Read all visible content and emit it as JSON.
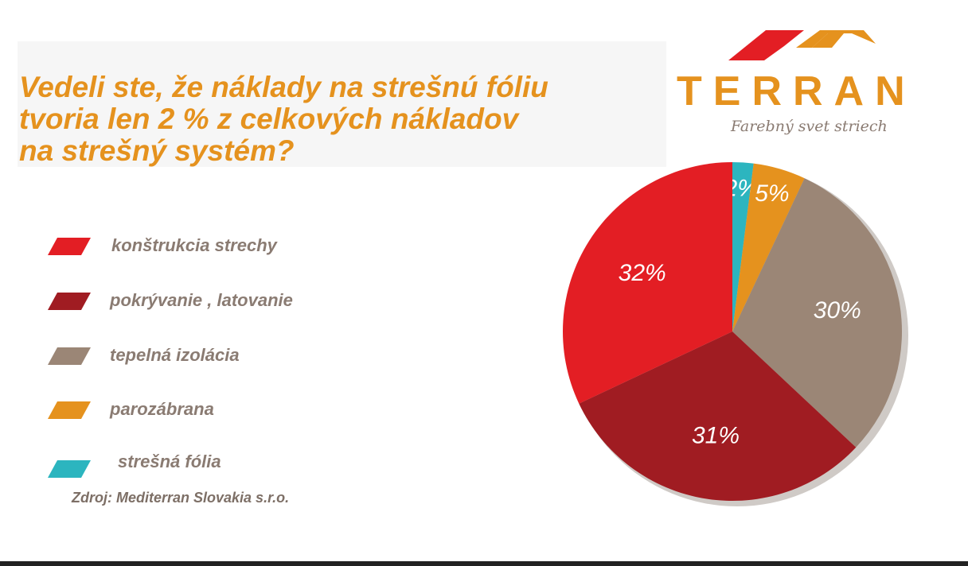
{
  "chart_data": {
    "type": "pie",
    "title": "Vedeli ste, že náklady na strešnú fóliu\ntvoria len 2 % z celkových nákladov\nna strešný systém?",
    "categories": [
      "konštrukcia strechy",
      "pokrývanie , latovanie",
      "tepelná izolácia",
      "parozábrana",
      "strešná fólia"
    ],
    "values": [
      32,
      31,
      30,
      5,
      2
    ],
    "value_labels": [
      "32%",
      "31%",
      "30%",
      "5%",
      "2%"
    ],
    "colors": [
      "#e31e24",
      "#a01c22",
      "#9b8676",
      "#e5921e",
      "#2cb5bf"
    ],
    "source": "Zdroj: Mediterran Slovakia s.r.o."
  },
  "logo": {
    "name": "TERRAN",
    "slogan": "Farebný svet striech"
  }
}
